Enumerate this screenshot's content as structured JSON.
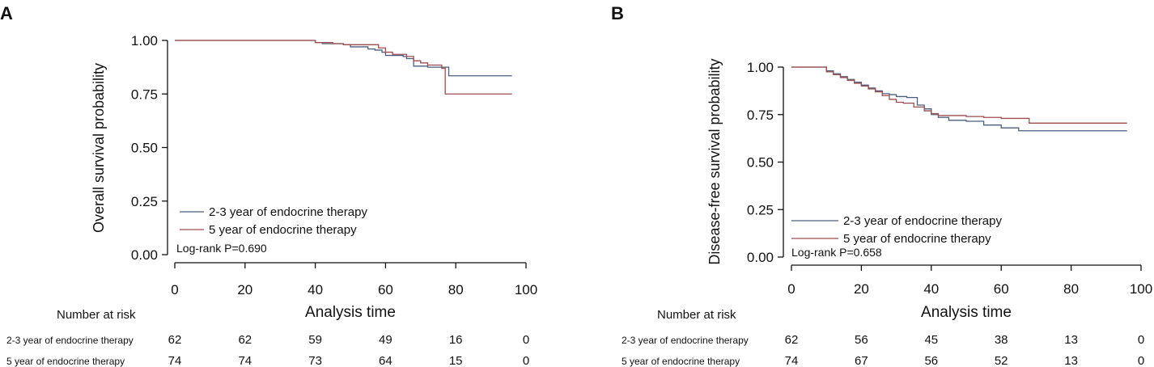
{
  "chart_data": [
    {
      "type": "line",
      "panel_label": "A",
      "xlabel": "Analysis time",
      "ylabel": "Overall survival probability",
      "xlim": [
        0,
        100
      ],
      "ylim": [
        0,
        1
      ],
      "x_ticks": [
        "0",
        "20",
        "40",
        "60",
        "80",
        "100"
      ],
      "y_ticks": [
        "0.00",
        "0.25",
        "0.50",
        "0.75",
        "1.00"
      ],
      "legend": [
        "2-3 year of endocrine therapy",
        "5 year of endocrine therapy"
      ],
      "annotation": "Log-rank P=0.690",
      "series": [
        {
          "name": "2-3 year of endocrine therapy",
          "color": "#4a5f7e",
          "x": [
            0,
            38,
            40,
            42,
            45,
            48,
            50,
            53,
            55,
            57,
            59,
            60,
            63,
            65,
            66,
            68,
            70,
            72,
            75,
            78,
            96
          ],
          "y": [
            1.0,
            1.0,
            0.99,
            0.985,
            0.985,
            0.98,
            0.97,
            0.97,
            0.96,
            0.955,
            0.945,
            0.93,
            0.93,
            0.925,
            0.915,
            0.88,
            0.88,
            0.875,
            0.875,
            0.835,
            0.835
          ]
        },
        {
          "name": "5 year of endocrine therapy",
          "color": "#a04c4c",
          "x": [
            0,
            40,
            45,
            48,
            55,
            58,
            60,
            62,
            66,
            68,
            70,
            72,
            76,
            77,
            96
          ],
          "y": [
            1.0,
            0.99,
            0.985,
            0.98,
            0.98,
            0.965,
            0.945,
            0.935,
            0.925,
            0.905,
            0.895,
            0.885,
            0.87,
            0.75,
            0.75
          ]
        }
      ],
      "risk_table": {
        "title": "Number at risk",
        "timepoints": [
          "0",
          "20",
          "40",
          "60",
          "80",
          "100"
        ],
        "rows": [
          {
            "label": "2-3 year of endocrine therapy",
            "values": [
              "62",
              "62",
              "59",
              "49",
              "16",
              "0"
            ]
          },
          {
            "label": "5 year of endocrine therapy",
            "values": [
              "74",
              "74",
              "73",
              "64",
              "15",
              "0"
            ]
          }
        ]
      }
    },
    {
      "type": "line",
      "panel_label": "B",
      "xlabel": "Analysis time",
      "ylabel": "Disease-free survival probability",
      "xlim": [
        0,
        100
      ],
      "ylim": [
        0,
        1
      ],
      "x_ticks": [
        "0",
        "20",
        "40",
        "60",
        "80",
        "100"
      ],
      "y_ticks": [
        "0.00",
        "0.25",
        "0.50",
        "0.75",
        "1.00"
      ],
      "legend": [
        "2-3 year of endocrine therapy",
        "5 year of endocrine therapy"
      ],
      "annotation": "Log-rank P=0.658",
      "series": [
        {
          "name": "2-3 year of endocrine therapy",
          "color": "#4a5f7e",
          "x": [
            0,
            10,
            12,
            14,
            16,
            18,
            20,
            22,
            24,
            26,
            28,
            30,
            33,
            36,
            38,
            40,
            42,
            45,
            50,
            55,
            60,
            65,
            70,
            96
          ],
          "y": [
            1.0,
            0.98,
            0.965,
            0.95,
            0.935,
            0.92,
            0.905,
            0.89,
            0.875,
            0.86,
            0.855,
            0.845,
            0.84,
            0.8,
            0.78,
            0.75,
            0.735,
            0.72,
            0.715,
            0.695,
            0.68,
            0.665,
            0.665,
            0.665
          ]
        },
        {
          "name": "5 year of endocrine therapy",
          "color": "#a04c4c",
          "x": [
            0,
            10,
            12,
            14,
            16,
            18,
            20,
            22,
            24,
            26,
            28,
            30,
            32,
            35,
            38,
            40,
            42,
            45,
            50,
            55,
            60,
            68,
            96
          ],
          "y": [
            1.0,
            0.975,
            0.96,
            0.945,
            0.93,
            0.915,
            0.9,
            0.885,
            0.87,
            0.85,
            0.83,
            0.815,
            0.81,
            0.79,
            0.77,
            0.755,
            0.745,
            0.745,
            0.74,
            0.735,
            0.73,
            0.705,
            0.705
          ]
        }
      ],
      "risk_table": {
        "title": "Number at risk",
        "timepoints": [
          "0",
          "20",
          "40",
          "60",
          "80",
          "100"
        ],
        "rows": [
          {
            "label": "2-3 year of endocrine therapy",
            "values": [
              "62",
              "56",
              "45",
              "38",
              "13",
              "0"
            ]
          },
          {
            "label": "5 year of endocrine therapy",
            "values": [
              "74",
              "67",
              "56",
              "52",
              "13",
              "0"
            ]
          }
        ]
      }
    }
  ]
}
